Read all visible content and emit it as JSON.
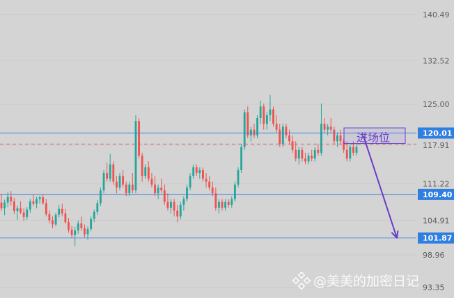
{
  "chart_data": {
    "type": "candlestick",
    "title": "",
    "xlabel": "",
    "ylabel": "",
    "ylim": [
      91.5,
      143.0
    ],
    "y_ticks": [
      "140.49",
      "132.52",
      "125.00",
      "117.91",
      "111.22",
      "104.91",
      "98.96",
      "93.35"
    ],
    "y_tick_values": [
      140.49,
      132.52,
      125.0,
      117.91,
      111.22,
      104.91,
      98.96,
      93.35
    ],
    "levels": [
      {
        "label": "120.01",
        "value": 120.01,
        "style": "solid",
        "color": "#2f7fe0"
      },
      {
        "label": "109.40",
        "value": 109.4,
        "style": "solid",
        "color": "#2f7fe0"
      },
      {
        "label": "101.87",
        "value": 101.87,
        "style": "solid",
        "color": "#2f7fe0"
      },
      {
        "label": "",
        "value": 118.1,
        "style": "dashed",
        "color": "#e05a5a"
      }
    ],
    "annotation": {
      "label": "进场位",
      "value_top": 120.9,
      "value_bottom": 118.2,
      "color": "#6a3cc8"
    },
    "arrow": {
      "from_value": 119.5,
      "to_value": 101.87,
      "color": "#6a3cc8"
    },
    "colors": {
      "up": "#26a69a",
      "down": "#ef5350"
    },
    "candles": [
      [
        108.0,
        109.5,
        106.5,
        107.0
      ],
      [
        107.0,
        108.5,
        105.8,
        108.0
      ],
      [
        108.0,
        109.8,
        107.2,
        109.0
      ],
      [
        109.0,
        110.0,
        107.5,
        108.2
      ],
      [
        108.2,
        108.8,
        106.0,
        106.5
      ],
      [
        106.5,
        107.5,
        105.0,
        107.0
      ],
      [
        107.0,
        108.2,
        106.0,
        106.3
      ],
      [
        106.3,
        107.0,
        104.8,
        105.5
      ],
      [
        105.5,
        107.2,
        105.0,
        106.8
      ],
      [
        106.8,
        108.6,
        106.2,
        108.2
      ],
      [
        108.2,
        109.3,
        107.4,
        107.8
      ],
      [
        107.8,
        109.0,
        107.0,
        108.6
      ],
      [
        108.6,
        109.2,
        107.8,
        108.9
      ],
      [
        108.9,
        109.4,
        107.6,
        107.9
      ],
      [
        107.9,
        108.6,
        105.6,
        106.0
      ],
      [
        106.0,
        106.6,
        104.4,
        104.9
      ],
      [
        104.9,
        105.6,
        103.6,
        104.2
      ],
      [
        104.2,
        106.2,
        103.9,
        105.9
      ],
      [
        105.9,
        107.6,
        105.4,
        106.9
      ],
      [
        106.9,
        107.8,
        105.6,
        106.1
      ],
      [
        106.1,
        106.9,
        104.3,
        104.6
      ],
      [
        104.6,
        105.3,
        102.8,
        103.3
      ],
      [
        103.3,
        104.0,
        101.9,
        102.4
      ],
      [
        102.4,
        103.8,
        100.5,
        103.2
      ],
      [
        103.2,
        104.9,
        102.6,
        104.4
      ],
      [
        104.4,
        105.6,
        103.1,
        103.6
      ],
      [
        103.6,
        104.2,
        102.0,
        102.5
      ],
      [
        102.5,
        103.9,
        101.6,
        103.4
      ],
      [
        103.4,
        105.6,
        103.0,
        105.2
      ],
      [
        105.2,
        106.8,
        104.6,
        106.4
      ],
      [
        106.4,
        108.4,
        105.9,
        107.9
      ],
      [
        107.9,
        110.6,
        107.4,
        110.1
      ],
      [
        110.1,
        113.6,
        109.6,
        113.1
      ],
      [
        113.1,
        114.9,
        111.6,
        112.1
      ],
      [
        112.1,
        116.4,
        111.6,
        114.6
      ],
      [
        114.6,
        115.1,
        111.1,
        111.6
      ],
      [
        111.6,
        112.6,
        109.6,
        110.6
      ],
      [
        110.6,
        113.1,
        110.1,
        112.6
      ],
      [
        112.6,
        113.6,
        110.6,
        111.1
      ],
      [
        111.1,
        111.6,
        109.1,
        109.6
      ],
      [
        109.6,
        111.6,
        109.1,
        111.1
      ],
      [
        111.1,
        113.1,
        109.6,
        110.1
      ],
      [
        110.1,
        123.1,
        109.6,
        122.1
      ],
      [
        122.1,
        122.6,
        115.6,
        116.1
      ],
      [
        116.1,
        116.6,
        111.6,
        112.6
      ],
      [
        112.6,
        114.6,
        112.1,
        114.1
      ],
      [
        114.1,
        115.1,
        111.6,
        112.1
      ],
      [
        112.1,
        113.1,
        110.6,
        111.1
      ],
      [
        111.1,
        112.6,
        109.1,
        109.6
      ],
      [
        109.6,
        111.1,
        108.6,
        110.6
      ],
      [
        110.6,
        112.1,
        109.6,
        110.1
      ],
      [
        110.1,
        111.1,
        107.6,
        108.1
      ],
      [
        108.1,
        109.6,
        106.6,
        107.1
      ],
      [
        107.1,
        108.6,
        106.1,
        108.1
      ],
      [
        108.1,
        108.6,
        105.6,
        106.6
      ],
      [
        106.6,
        107.6,
        104.6,
        105.6
      ],
      [
        105.6,
        108.1,
        105.1,
        107.6
      ],
      [
        107.6,
        109.1,
        106.6,
        108.6
      ],
      [
        108.6,
        111.1,
        108.1,
        110.6
      ],
      [
        110.6,
        113.1,
        110.1,
        112.6
      ],
      [
        112.6,
        114.6,
        112.1,
        114.1
      ],
      [
        114.1,
        114.6,
        112.6,
        113.1
      ],
      [
        113.1,
        114.1,
        112.1,
        113.6
      ],
      [
        113.6,
        114.1,
        111.6,
        112.1
      ],
      [
        112.1,
        113.1,
        110.6,
        111.6
      ],
      [
        111.6,
        112.6,
        110.1,
        110.6
      ],
      [
        110.6,
        111.6,
        109.1,
        109.6
      ],
      [
        109.6,
        110.6,
        106.6,
        107.1
      ],
      [
        107.1,
        108.6,
        106.1,
        108.1
      ],
      [
        108.1,
        108.6,
        106.6,
        107.1
      ],
      [
        107.1,
        108.6,
        106.6,
        108.1
      ],
      [
        108.1,
        108.6,
        107.1,
        107.6
      ],
      [
        107.6,
        109.1,
        107.1,
        108.6
      ],
      [
        108.6,
        111.6,
        108.1,
        111.1
      ],
      [
        111.1,
        114.1,
        110.6,
        113.6
      ],
      [
        113.6,
        118.1,
        113.1,
        117.6
      ],
      [
        117.6,
        124.1,
        117.1,
        123.6
      ],
      [
        123.6,
        124.6,
        119.1,
        119.6
      ],
      [
        119.6,
        121.1,
        118.6,
        120.6
      ],
      [
        120.6,
        121.6,
        119.1,
        119.6
      ],
      [
        119.6,
        123.1,
        119.1,
        122.6
      ],
      [
        122.6,
        125.6,
        121.6,
        124.6
      ],
      [
        124.6,
        125.1,
        120.6,
        121.6
      ],
      [
        121.6,
        123.6,
        120.6,
        123.1
      ],
      [
        123.1,
        126.6,
        122.1,
        124.1
      ],
      [
        124.1,
        124.6,
        121.1,
        121.6
      ],
      [
        121.6,
        123.1,
        120.1,
        120.6
      ],
      [
        120.6,
        121.6,
        117.6,
        118.1
      ],
      [
        118.1,
        121.6,
        117.6,
        121.1
      ],
      [
        121.1,
        121.6,
        119.1,
        119.6
      ],
      [
        119.6,
        120.6,
        118.1,
        118.6
      ],
      [
        118.6,
        119.6,
        116.6,
        117.1
      ],
      [
        117.1,
        118.6,
        115.1,
        115.6
      ],
      [
        115.6,
        117.6,
        114.6,
        117.1
      ],
      [
        117.1,
        117.6,
        115.1,
        115.6
      ],
      [
        115.6,
        116.6,
        114.6,
        115.1
      ],
      [
        115.1,
        116.6,
        114.6,
        116.1
      ],
      [
        116.1,
        117.1,
        115.1,
        115.6
      ],
      [
        115.6,
        117.6,
        115.1,
        117.1
      ],
      [
        117.1,
        118.1,
        116.1,
        116.6
      ],
      [
        116.6,
        125.1,
        116.1,
        121.6
      ],
      [
        121.6,
        122.6,
        120.1,
        120.6
      ],
      [
        120.6,
        121.6,
        119.6,
        121.1
      ],
      [
        121.1,
        122.6,
        120.1,
        120.6
      ],
      [
        120.6,
        121.1,
        118.1,
        118.6
      ],
      [
        118.6,
        120.1,
        117.6,
        119.6
      ],
      [
        119.6,
        120.6,
        118.1,
        118.6
      ],
      [
        118.6,
        119.1,
        116.6,
        117.1
      ],
      [
        117.1,
        118.6,
        115.1,
        115.6
      ],
      [
        115.6,
        118.1,
        115.1,
        117.6
      ],
      [
        117.6,
        118.6,
        116.1,
        116.6
      ],
      [
        116.6,
        118.1,
        116.1,
        117.6
      ]
    ]
  },
  "watermark": {
    "text": "@美美的加密日记",
    "icon": "binance-logo-icon"
  }
}
